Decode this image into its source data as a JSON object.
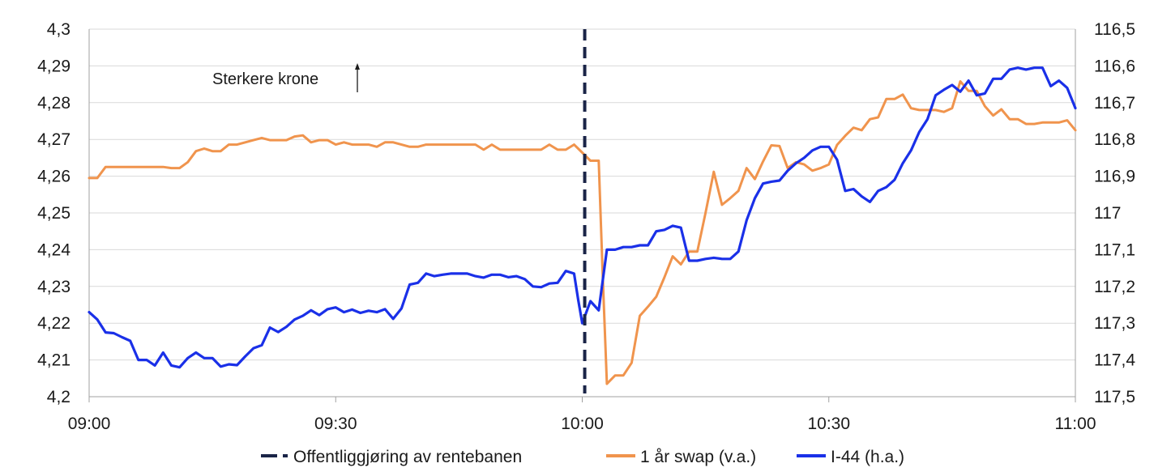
{
  "chart_data": {
    "type": "line",
    "title": "",
    "annotation": "Sterkere krone",
    "x_ticks": [
      "09:00",
      "09:30",
      "10:00",
      "10:30",
      "11:00"
    ],
    "x_range_minutes": [
      0,
      120
    ],
    "y_left": {
      "range": [
        4.2,
        4.3
      ],
      "ticks": [
        "4,3",
        "4,29",
        "4,28",
        "4,27",
        "4,26",
        "4,25",
        "4,24",
        "4,23",
        "4,22",
        "4,21",
        "4,2"
      ]
    },
    "y_right": {
      "range": [
        116.5,
        117.5
      ],
      "inverted": true,
      "ticks": [
        "116,5",
        "116,6",
        "116,7",
        "116,8",
        "116,9",
        "117",
        "117,1",
        "117,2",
        "117,3",
        "117,4",
        "117,5"
      ]
    },
    "event": {
      "name": "Offentliggjøring av rentebanen",
      "x": 60.3,
      "color": "#1a2447"
    },
    "series": [
      {
        "name": "1 år swap (v.a.)",
        "axis": "left",
        "color": "#f0944d",
        "points": [
          [
            0,
            4.2595
          ],
          [
            1,
            4.2595
          ],
          [
            2,
            4.2625
          ],
          [
            4,
            4.2625
          ],
          [
            6,
            4.2625
          ],
          [
            8,
            4.2625
          ],
          [
            9,
            4.2625
          ],
          [
            10,
            4.2622
          ],
          [
            11,
            4.2622
          ],
          [
            12,
            4.2638
          ],
          [
            13,
            4.2668
          ],
          [
            14,
            4.2675
          ],
          [
            15,
            4.2668
          ],
          [
            16,
            4.2668
          ],
          [
            17,
            4.2686
          ],
          [
            18,
            4.2686
          ],
          [
            19,
            4.2692
          ],
          [
            20,
            4.2698
          ],
          [
            21,
            4.2704
          ],
          [
            22,
            4.2698
          ],
          [
            24,
            4.2698
          ],
          [
            25,
            4.2708
          ],
          [
            26,
            4.2711
          ],
          [
            27,
            4.2692
          ],
          [
            28,
            4.2698
          ],
          [
            29,
            4.2698
          ],
          [
            30,
            4.2686
          ],
          [
            31,
            4.2692
          ],
          [
            32,
            4.2686
          ],
          [
            34,
            4.2686
          ],
          [
            35,
            4.268
          ],
          [
            36,
            4.2692
          ],
          [
            37,
            4.2692
          ],
          [
            38,
            4.2686
          ],
          [
            39,
            4.268
          ],
          [
            40,
            4.268
          ],
          [
            41,
            4.2686
          ],
          [
            47,
            4.2686
          ],
          [
            48,
            4.2672
          ],
          [
            49,
            4.2686
          ],
          [
            50,
            4.2672
          ],
          [
            55,
            4.2672
          ],
          [
            56,
            4.2686
          ],
          [
            57,
            4.2672
          ],
          [
            58,
            4.2672
          ],
          [
            59,
            4.2686
          ],
          [
            60,
            4.2664
          ],
          [
            61,
            4.2642
          ],
          [
            62,
            4.2642
          ],
          [
            62.5,
            4.232
          ],
          [
            63,
            4.2035
          ],
          [
            64,
            4.2058
          ],
          [
            65,
            4.2058
          ],
          [
            66,
            4.2092
          ],
          [
            67,
            4.222
          ],
          [
            68,
            4.2245
          ],
          [
            69,
            4.2272
          ],
          [
            70,
            4.2325
          ],
          [
            71,
            4.2382
          ],
          [
            72,
            4.236
          ],
          [
            73,
            4.2395
          ],
          [
            74,
            4.2395
          ],
          [
            75,
            4.25
          ],
          [
            76,
            4.2612
          ],
          [
            77,
            4.2522
          ],
          [
            78,
            4.254
          ],
          [
            79,
            4.256
          ],
          [
            80,
            4.2622
          ],
          [
            81,
            4.2592
          ],
          [
            82,
            4.264
          ],
          [
            83,
            4.2684
          ],
          [
            84,
            4.2682
          ],
          [
            85,
            4.2622
          ],
          [
            86,
            4.2638
          ],
          [
            87,
            4.2632
          ],
          [
            88,
            4.2615
          ],
          [
            89,
            4.2622
          ],
          [
            90,
            4.2632
          ],
          [
            91,
            4.2685
          ],
          [
            92,
            4.271
          ],
          [
            93,
            4.2732
          ],
          [
            94,
            4.2725
          ],
          [
            95,
            4.2755
          ],
          [
            96,
            4.276
          ],
          [
            97,
            4.281
          ],
          [
            98,
            4.281
          ],
          [
            99,
            4.2822
          ],
          [
            100,
            4.2785
          ],
          [
            101,
            4.278
          ],
          [
            103,
            4.278
          ],
          [
            104,
            4.2775
          ],
          [
            105,
            4.2785
          ],
          [
            106,
            4.2858
          ],
          [
            107,
            4.2832
          ],
          [
            108,
            4.2832
          ],
          [
            109,
            4.279
          ],
          [
            110,
            4.2765
          ],
          [
            111,
            4.2782
          ],
          [
            112,
            4.2755
          ],
          [
            113,
            4.2755
          ],
          [
            114,
            4.2742
          ],
          [
            115,
            4.2742
          ],
          [
            116,
            4.2746
          ],
          [
            118,
            4.2746
          ],
          [
            119,
            4.2752
          ],
          [
            120,
            4.2725
          ]
        ]
      },
      {
        "name": "I-44 (h.a.)",
        "axis": "right",
        "color": "#1a30e8",
        "points": [
          [
            0,
            117.27
          ],
          [
            1,
            117.29
          ],
          [
            2,
            117.325
          ],
          [
            3,
            117.327
          ],
          [
            4,
            117.338
          ],
          [
            5,
            117.348
          ],
          [
            6,
            117.4
          ],
          [
            7,
            117.4
          ],
          [
            8,
            117.415
          ],
          [
            9,
            117.38
          ],
          [
            10,
            117.415
          ],
          [
            11,
            117.42
          ],
          [
            12,
            117.395
          ],
          [
            13,
            117.38
          ],
          [
            14,
            117.395
          ],
          [
            15,
            117.395
          ],
          [
            16,
            117.418
          ],
          [
            17,
            117.412
          ],
          [
            18,
            117.414
          ],
          [
            19,
            117.39
          ],
          [
            20,
            117.368
          ],
          [
            21,
            117.36
          ],
          [
            22,
            117.312
          ],
          [
            23,
            117.324
          ],
          [
            24,
            117.31
          ],
          [
            25,
            117.29
          ],
          [
            26,
            117.28
          ],
          [
            27,
            117.265
          ],
          [
            28,
            117.278
          ],
          [
            29,
            117.262
          ],
          [
            30,
            117.257
          ],
          [
            31,
            117.27
          ],
          [
            32,
            117.263
          ],
          [
            33,
            117.272
          ],
          [
            34,
            117.266
          ],
          [
            35,
            117.27
          ],
          [
            36,
            117.262
          ],
          [
            37,
            117.288
          ],
          [
            38,
            117.26
          ],
          [
            39,
            117.195
          ],
          [
            40,
            117.19
          ],
          [
            41,
            117.165
          ],
          [
            42,
            117.172
          ],
          [
            43,
            117.168
          ],
          [
            44,
            117.165
          ],
          [
            45,
            117.165
          ],
          [
            46,
            117.165
          ],
          [
            47,
            117.172
          ],
          [
            48,
            117.176
          ],
          [
            49,
            117.168
          ],
          [
            50,
            117.168
          ],
          [
            51,
            117.175
          ],
          [
            52,
            117.172
          ],
          [
            53,
            117.18
          ],
          [
            54,
            117.2
          ],
          [
            55,
            117.202
          ],
          [
            56,
            117.192
          ],
          [
            57,
            117.19
          ],
          [
            58,
            117.158
          ],
          [
            59,
            117.165
          ],
          [
            59.5,
            117.235
          ],
          [
            60,
            117.3
          ],
          [
            61,
            117.24
          ],
          [
            62,
            117.265
          ],
          [
            63,
            117.1
          ],
          [
            64,
            117.1
          ],
          [
            65,
            117.093
          ],
          [
            66,
            117.093
          ],
          [
            67,
            117.088
          ],
          [
            68,
            117.088
          ],
          [
            69,
            117.05
          ],
          [
            70,
            117.046
          ],
          [
            71,
            117.035
          ],
          [
            72,
            117.04
          ],
          [
            73,
            117.13
          ],
          [
            74,
            117.13
          ],
          [
            75,
            117.125
          ],
          [
            76,
            117.122
          ],
          [
            77,
            117.125
          ],
          [
            78,
            117.125
          ],
          [
            79,
            117.105
          ],
          [
            80,
            117.02
          ],
          [
            81,
            116.96
          ],
          [
            82,
            116.92
          ],
          [
            83,
            116.915
          ],
          [
            84,
            116.912
          ],
          [
            85,
            116.885
          ],
          [
            86,
            116.865
          ],
          [
            87,
            116.85
          ],
          [
            88,
            116.83
          ],
          [
            89,
            116.82
          ],
          [
            90,
            116.82
          ],
          [
            91,
            116.855
          ],
          [
            92,
            116.94
          ],
          [
            93,
            116.935
          ],
          [
            94,
            116.955
          ],
          [
            95,
            116.97
          ],
          [
            96,
            116.94
          ],
          [
            97,
            116.93
          ],
          [
            98,
            116.91
          ],
          [
            99,
            116.865
          ],
          [
            100,
            116.83
          ],
          [
            101,
            116.78
          ],
          [
            102,
            116.745
          ],
          [
            103,
            116.68
          ],
          [
            104,
            116.665
          ],
          [
            105,
            116.652
          ],
          [
            106,
            116.67
          ],
          [
            107,
            116.64
          ],
          [
            108,
            116.68
          ],
          [
            109,
            116.675
          ],
          [
            110,
            116.635
          ],
          [
            111,
            116.635
          ],
          [
            112,
            116.61
          ],
          [
            113,
            116.605
          ],
          [
            114,
            116.61
          ],
          [
            115,
            116.605
          ],
          [
            116,
            116.605
          ],
          [
            117,
            116.655
          ],
          [
            118,
            116.64
          ],
          [
            119,
            116.66
          ],
          [
            120,
            116.715
          ]
        ]
      }
    ],
    "legend": {
      "placement": "bottom",
      "items": [
        {
          "label": "Offentliggjøring av rentebanen",
          "style": "dashed",
          "color": "#1a2447"
        },
        {
          "label": "1 år swap (v.a.)",
          "style": "solid",
          "color": "#f0944d"
        },
        {
          "label": "I-44 (h.a.)",
          "style": "solid",
          "color": "#1a30e8"
        }
      ]
    },
    "grid": {
      "horizontal": true,
      "vertical": false
    }
  }
}
